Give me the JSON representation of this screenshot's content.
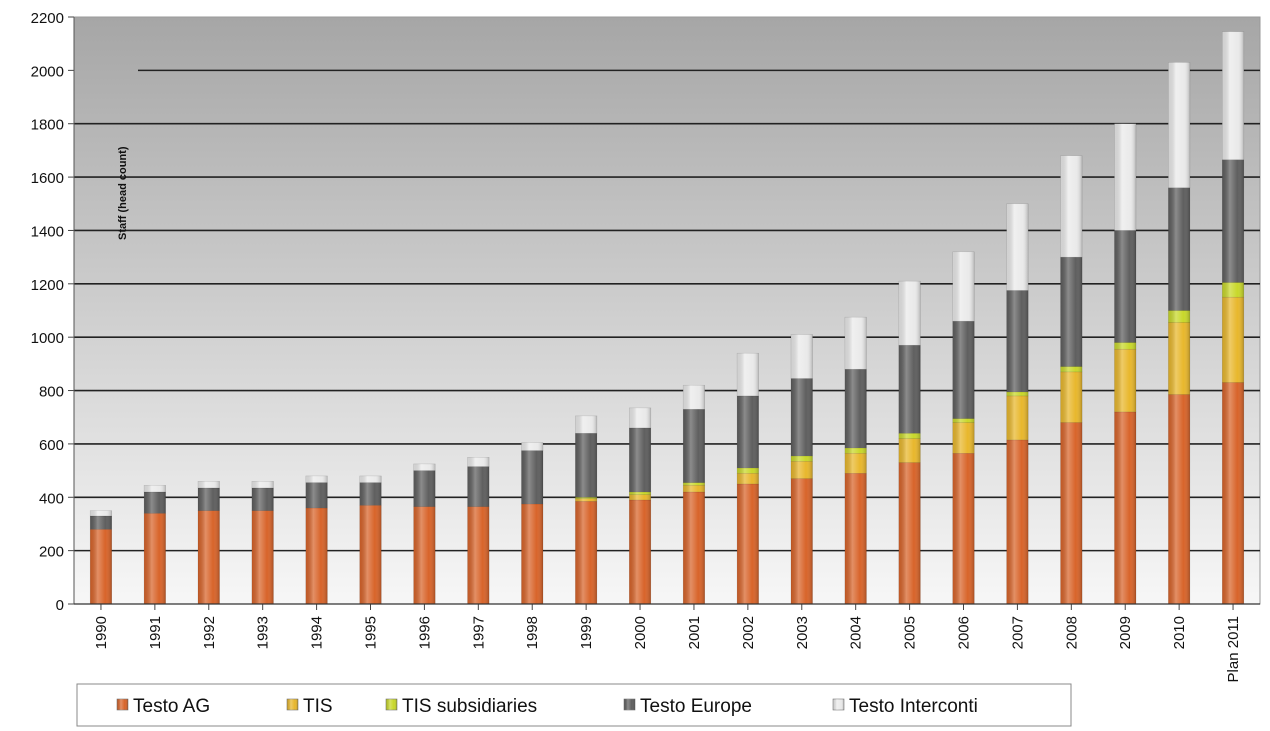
{
  "chart_data": {
    "type": "bar",
    "stacked": true,
    "title": "",
    "xlabel": "",
    "ylabel": "Staff (head count)",
    "ylim": [
      0,
      2200
    ],
    "yticks": [
      0,
      200,
      400,
      600,
      800,
      1000,
      1200,
      1400,
      1600,
      1800,
      2000,
      2200
    ],
    "grid": true,
    "legend_position": "bottom",
    "categories": [
      "1990",
      "1991",
      "1992",
      "1993",
      "1994",
      "1995",
      "1996",
      "1997",
      "1998",
      "1999",
      "2000",
      "2001",
      "2002",
      "2003",
      "2004",
      "2005",
      "2006",
      "2007",
      "2008",
      "2009",
      "2010",
      "Plan 2011"
    ],
    "series": [
      {
        "name": "Testo AG",
        "color": "#d8642a",
        "values": [
          280,
          340,
          350,
          350,
          360,
          370,
          365,
          365,
          375,
          385,
          390,
          420,
          450,
          470,
          490,
          530,
          565,
          615,
          680,
          720,
          785,
          830
        ]
      },
      {
        "name": "TIS",
        "color": "#e8b72c",
        "values": [
          0,
          0,
          0,
          0,
          0,
          0,
          0,
          0,
          0,
          10,
          20,
          25,
          40,
          65,
          75,
          90,
          115,
          165,
          190,
          235,
          270,
          320
        ]
      },
      {
        "name": "TIS subsidiaries",
        "color": "#c8d82a",
        "values": [
          0,
          0,
          0,
          0,
          0,
          0,
          0,
          0,
          0,
          5,
          10,
          10,
          20,
          20,
          20,
          20,
          15,
          15,
          20,
          25,
          45,
          55
        ]
      },
      {
        "name": "Testo Europe",
        "color": "#5f5f5f",
        "values": [
          50,
          80,
          85,
          85,
          95,
          85,
          135,
          150,
          200,
          240,
          240,
          275,
          270,
          290,
          295,
          330,
          365,
          380,
          410,
          420,
          460,
          460
        ]
      },
      {
        "name": "Testo Interconti",
        "color": "#eaeaea",
        "values": [
          20,
          25,
          25,
          25,
          25,
          25,
          25,
          35,
          30,
          65,
          75,
          90,
          160,
          165,
          195,
          240,
          260,
          325,
          380,
          400,
          470,
          480
        ]
      }
    ]
  }
}
